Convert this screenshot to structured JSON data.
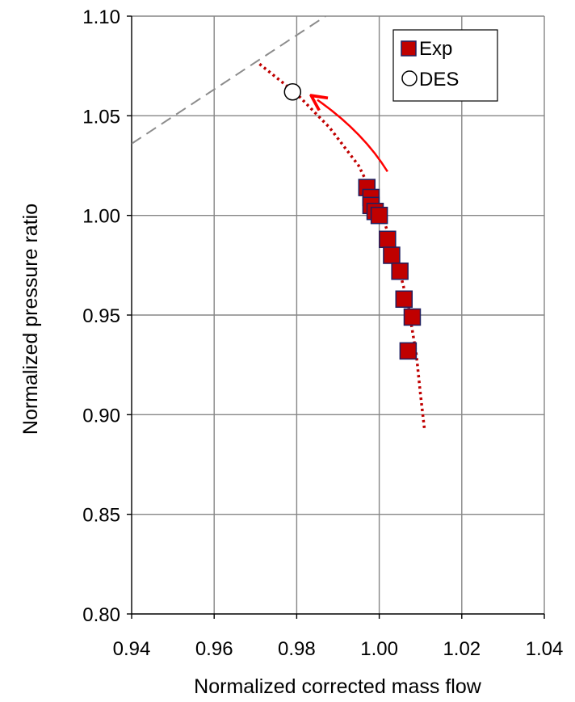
{
  "chart_data": {
    "type": "scatter",
    "title": "",
    "xlabel": "Normalized corrected mass flow",
    "ylabel": "Normalized pressure ratio",
    "xlim": [
      0.94,
      1.04
    ],
    "ylim": [
      0.8,
      1.1
    ],
    "xticks": [
      "0.94",
      "0.96",
      "0.98",
      "1.00",
      "1.02",
      "1.04"
    ],
    "yticks": [
      "0.80",
      "0.85",
      "0.90",
      "0.95",
      "1.00",
      "1.05",
      "1.10"
    ],
    "grid": true,
    "legend_position": "top-right",
    "series": [
      {
        "name": "Exp",
        "marker": "square",
        "color": "#c00000",
        "edge_color": "#1f1f5f",
        "points": [
          {
            "x": 0.997,
            "y": 1.014
          },
          {
            "x": 0.998,
            "y": 1.009
          },
          {
            "x": 0.998,
            "y": 1.005
          },
          {
            "x": 0.999,
            "y": 1.002
          },
          {
            "x": 1.0,
            "y": 1.0
          },
          {
            "x": 1.002,
            "y": 0.988
          },
          {
            "x": 1.003,
            "y": 0.98
          },
          {
            "x": 1.005,
            "y": 0.972
          },
          {
            "x": 1.006,
            "y": 0.958
          },
          {
            "x": 1.008,
            "y": 0.949
          },
          {
            "x": 1.007,
            "y": 0.932
          }
        ]
      },
      {
        "name": "DES",
        "marker": "circle",
        "color": "#ffffff",
        "edge_color": "#000000",
        "points": [
          {
            "x": 0.979,
            "y": 1.062
          }
        ]
      }
    ],
    "trend_line": {
      "style": "dotted",
      "color": "#c00000",
      "points": [
        {
          "x": 0.971,
          "y": 1.076
        },
        {
          "x": 0.98,
          "y": 1.061
        },
        {
          "x": 0.988,
          "y": 1.044
        },
        {
          "x": 0.995,
          "y": 1.025
        },
        {
          "x": 1.0,
          "y": 1.004
        },
        {
          "x": 1.004,
          "y": 0.98
        },
        {
          "x": 1.007,
          "y": 0.955
        },
        {
          "x": 1.009,
          "y": 0.93
        },
        {
          "x": 1.01,
          "y": 0.91
        },
        {
          "x": 1.011,
          "y": 0.892
        }
      ]
    },
    "reference_line": {
      "style": "dashed",
      "color": "#8c8c8c",
      "points": [
        {
          "x": 0.94,
          "y": 1.036
        },
        {
          "x": 0.987,
          "y": 1.1
        }
      ]
    },
    "annotation_arrow": {
      "color": "#ff0000",
      "points": [
        {
          "x": 1.002,
          "y": 1.022
        },
        {
          "x": 0.996,
          "y": 1.042
        },
        {
          "x": 0.985,
          "y": 1.058
        }
      ]
    }
  }
}
